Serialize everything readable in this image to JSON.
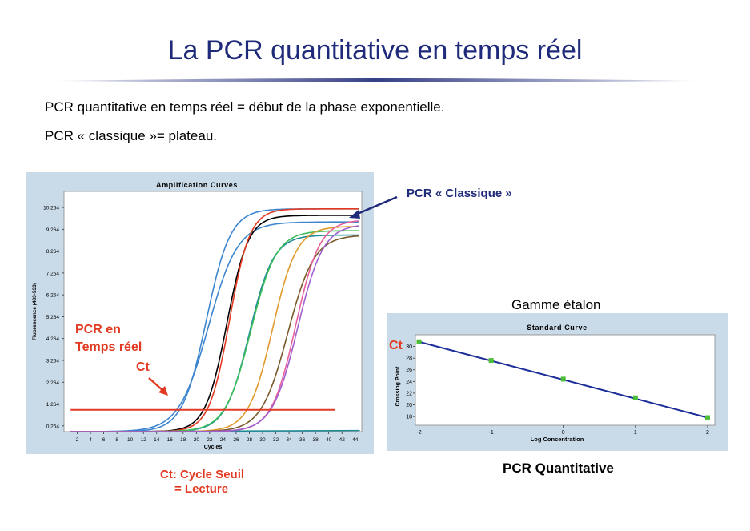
{
  "slide": {
    "title": "La PCR quantitative en temps réel",
    "bullets": [
      "PCR quantitative en temps réel = début de la phase exponentielle.",
      "PCR « classique »= plateau."
    ]
  },
  "annotations": {
    "pcr_classique": "PCR « Classique »",
    "pcr_temps_reel_1": "PCR en",
    "pcr_temps_reel_2": "Temps réel",
    "ct_amp": "Ct",
    "ct_std": "Ct",
    "ct_caption_1": "Ct: Cycle Seuil",
    "ct_caption_2": "= Lecture",
    "gamme": "Gamme étalon",
    "pcr_quant": "PCR Quantitative"
  },
  "colors": {
    "accent_red": "#e23a22",
    "title_blue": "#1f2a7a",
    "panel_bg": "#c9dae8",
    "regression": "#1f2f9a",
    "point_green": "#4bbf3a"
  },
  "chart_data": [
    {
      "type": "line",
      "title": "Amplification Curves",
      "xlabel": "Cycles",
      "ylabel": "Fluorescence (483-533)",
      "xlim": [
        0,
        45
      ],
      "ylim": [
        0,
        11
      ],
      "x_ticks": [
        2,
        4,
        6,
        8,
        10,
        12,
        14,
        16,
        18,
        20,
        22,
        24,
        26,
        28,
        30,
        32,
        34,
        36,
        38,
        40,
        42,
        44
      ],
      "y_ticks": [
        0.264,
        1.264,
        2.264,
        3.264,
        4.264,
        5.264,
        6.264,
        7.264,
        8.264,
        9.264,
        10.264
      ],
      "y_tick_labels": [
        "0.264",
        "1.264",
        "2.264",
        "3.264",
        "4.264",
        "5.264",
        "6.264",
        "7.264",
        "8.264",
        "9.264",
        "10.264"
      ],
      "threshold": 1.0,
      "series": [
        {
          "color": "#3d86cf",
          "baseline": 0.0,
          "plateau": 10.2,
          "midpoint": 21.5,
          "slope": 0.55
        },
        {
          "color": "#3d86cf",
          "baseline": 0.0,
          "plateau": 9.6,
          "midpoint": 21.8,
          "slope": 0.45
        },
        {
          "color": "#000000",
          "baseline": 0.0,
          "plateau": 9.9,
          "midpoint": 24.6,
          "slope": 0.62
        },
        {
          "color": "#e23a22",
          "baseline": 0.0,
          "plateau": 10.2,
          "midpoint": 25.0,
          "slope": 0.65
        },
        {
          "color": "#1e8a98",
          "baseline": 0.0,
          "plateau": 9.0,
          "midpoint": 28.0,
          "slope": 0.55
        },
        {
          "color": "#3dbd5a",
          "baseline": 0.0,
          "plateau": 9.2,
          "midpoint": 28.2,
          "slope": 0.52
        },
        {
          "color": "#e09a2c",
          "baseline": 0.0,
          "plateau": 9.4,
          "midpoint": 31.5,
          "slope": 0.55
        },
        {
          "color": "#7a5a2a",
          "baseline": 0.0,
          "plateau": 9.0,
          "midpoint": 33.8,
          "slope": 0.5
        },
        {
          "color": "#e8609a",
          "baseline": 0.0,
          "plateau": 9.7,
          "midpoint": 35.0,
          "slope": 0.55
        },
        {
          "color": "#a060d0",
          "baseline": 0.0,
          "plateau": 9.5,
          "midpoint": 35.3,
          "slope": 0.52
        }
      ]
    },
    {
      "type": "scatter",
      "title": "Standard Curve",
      "xlabel": "Log Concentration",
      "ylabel": "Crossing Point",
      "xlim": [
        -2.05,
        2.1
      ],
      "ylim": [
        16.5,
        32
      ],
      "x_ticks": [
        -2,
        -1,
        0,
        1,
        2
      ],
      "x_tick_labels": [
        "-2",
        "-1",
        "0",
        "1",
        "2"
      ],
      "y_ticks": [
        18,
        20,
        22,
        24,
        26,
        28,
        30
      ],
      "y_tick_labels": [
        "18",
        "20",
        "22",
        "24",
        "26",
        "28",
        "30"
      ],
      "points": [
        {
          "x": -2,
          "y": 30.8
        },
        {
          "x": -1,
          "y": 27.6
        },
        {
          "x": 0,
          "y": 24.4
        },
        {
          "x": 1,
          "y": 21.2
        },
        {
          "x": 2,
          "y": 17.8
        }
      ],
      "fit": {
        "x": [
          -2,
          2
        ],
        "y": [
          30.8,
          17.8
        ]
      }
    }
  ]
}
